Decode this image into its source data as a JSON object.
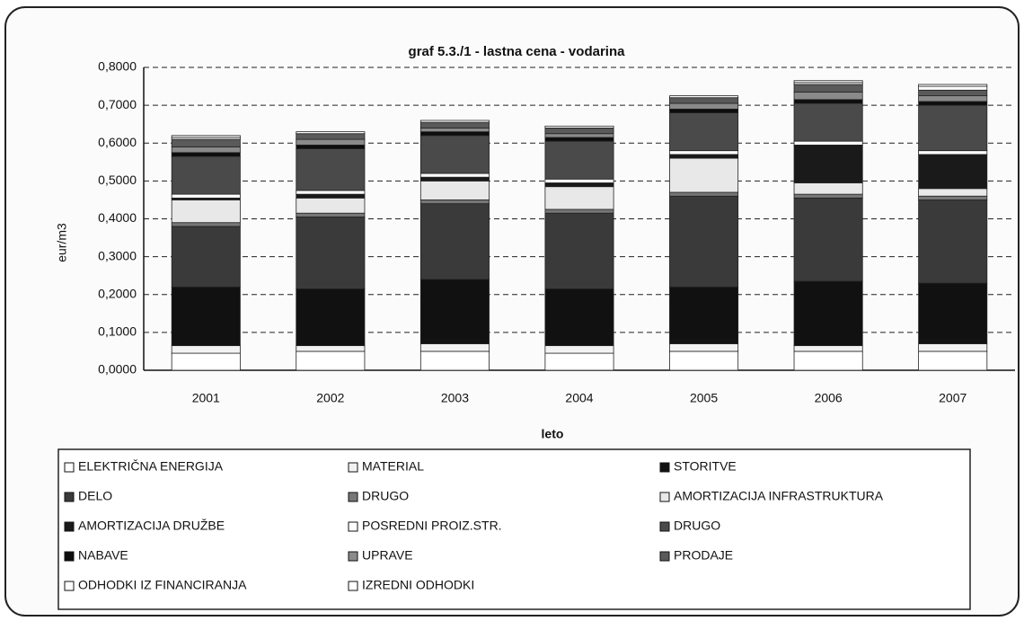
{
  "chart_data": {
    "type": "stacked_bar",
    "title": "graf 5.3./1 - lastna cena - vodarina",
    "y_label": "eur/m3",
    "x_label": "leto",
    "categories": [
      "2001",
      "2002",
      "2003",
      "2004",
      "2005",
      "2006",
      "2007"
    ],
    "ylim": [
      0,
      0.8
    ],
    "yticks": [
      {
        "value": 0,
        "label": "0,0000"
      },
      {
        "value": 0.1,
        "label": "0,1000"
      },
      {
        "value": 0.2,
        "label": "0,2000"
      },
      {
        "value": 0.3,
        "label": "0,3000"
      },
      {
        "value": 0.4,
        "label": "0,4000"
      },
      {
        "value": 0.5,
        "label": "0,5000"
      },
      {
        "value": 0.6,
        "label": "0,6000"
      },
      {
        "value": 0.7,
        "label": "0,7000"
      },
      {
        "value": 0.8,
        "label": "0,8000"
      }
    ],
    "grid": true,
    "series": [
      {
        "name": "ELEKTRIČNA ENERGIJA",
        "color": "#ffffff",
        "values": [
          0.045,
          0.05,
          0.05,
          0.045,
          0.05,
          0.05,
          0.05
        ]
      },
      {
        "name": "MATERIAL",
        "color": "#f2f2f2",
        "values": [
          0.02,
          0.015,
          0.02,
          0.02,
          0.02,
          0.015,
          0.02
        ]
      },
      {
        "name": "STORITVE",
        "color": "#111111",
        "values": [
          0.155,
          0.15,
          0.17,
          0.15,
          0.15,
          0.17,
          0.16
        ]
      },
      {
        "name": "DELO",
        "color": "#3a3a3a",
        "values": [
          0.16,
          0.19,
          0.2,
          0.2,
          0.24,
          0.22,
          0.22
        ]
      },
      {
        "name": "DRUGO",
        "color": "#777777",
        "values": [
          0.01,
          0.01,
          0.01,
          0.01,
          0.01,
          0.01,
          0.01
        ]
      },
      {
        "name": "AMORTIZACIJA INFRASTRUKTURA",
        "color": "#e8e8e8",
        "values": [
          0.06,
          0.04,
          0.05,
          0.06,
          0.09,
          0.03,
          0.02
        ]
      },
      {
        "name": "AMORTIZACIJA DRUŽBE",
        "color": "#1a1a1a",
        "values": [
          0.005,
          0.01,
          0.01,
          0.01,
          0.01,
          0.1,
          0.09
        ]
      },
      {
        "name": "POSREDNI PROIZ.STR.",
        "color": "#ffffff",
        "values": [
          0.01,
          0.01,
          0.01,
          0.01,
          0.01,
          0.01,
          0.01
        ]
      },
      {
        "name": "DRUGO",
        "color": "#4a4a4a",
        "values": [
          0.1,
          0.11,
          0.1,
          0.1,
          0.1,
          0.1,
          0.12
        ]
      },
      {
        "name": "NABAVE",
        "color": "#0d0d0d",
        "values": [
          0.01,
          0.01,
          0.01,
          0.01,
          0.01,
          0.01,
          0.01
        ]
      },
      {
        "name": "UPRAVE",
        "color": "#8a8a8a",
        "values": [
          0.015,
          0.015,
          0.01,
          0.01,
          0.015,
          0.02,
          0.015
        ]
      },
      {
        "name": "PRODAJE",
        "color": "#5a5a5a",
        "values": [
          0.02,
          0.015,
          0.015,
          0.015,
          0.015,
          0.02,
          0.015
        ]
      },
      {
        "name": "ODHODKI IZ FINANCIRANJA",
        "color": "#ffffff",
        "values": [
          0.005,
          0.005,
          0.005,
          0.005,
          0.005,
          0.005,
          0.01
        ]
      },
      {
        "name": "IZREDNI ODHODKI",
        "color": "#ffffff",
        "values": [
          0.005,
          0,
          0,
          0,
          0,
          0.005,
          0.005
        ]
      }
    ]
  }
}
